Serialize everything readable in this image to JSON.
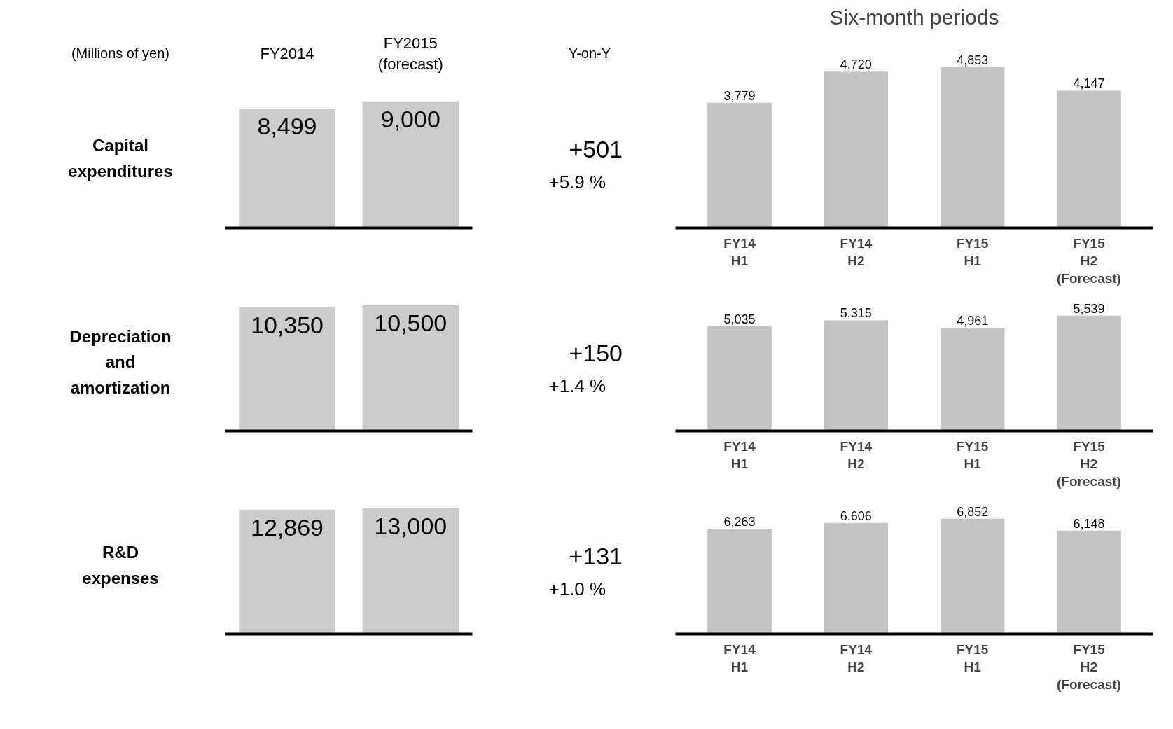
{
  "chart_data": [
    {
      "type": "bar",
      "title": "Capital expenditures",
      "categories": [
        "FY2014",
        "FY2015 (forecast)"
      ],
      "values": [
        8499,
        9000
      ],
      "value_labels": [
        "8,499",
        "9,000"
      ],
      "color": "#cccccc",
      "annotations": [
        "(Millions of yen)",
        "Y-on-Y",
        "+501",
        "+5.9 %"
      ]
    },
    {
      "type": "bar",
      "title": "Six-month periods",
      "categories": [
        "FY14 H1",
        "FY14 H2",
        "FY15 H1",
        "FY15 H2 (Forecast)"
      ],
      "values": [
        3779,
        4720,
        4853,
        4147
      ],
      "value_labels": [
        "3,779",
        "4,720",
        "4,853",
        "4,147"
      ],
      "color": "#c4c4c4"
    },
    {
      "type": "bar",
      "title": "Depreciation and amortization",
      "categories": [
        null,
        null
      ],
      "values": [
        10350,
        10500
      ],
      "value_labels": [
        "10,350",
        "10,500"
      ],
      "color": "#cccccc",
      "annotations": [
        "+150",
        "+1.4 %"
      ]
    },
    {
      "type": "bar",
      "categories": [
        "FY14 H1",
        "FY14 H2",
        "FY15 H1",
        "FY15 H2 (Forecast)"
      ],
      "values": [
        5035,
        5315,
        4961,
        5539
      ],
      "value_labels": [
        "5,035",
        "5,315",
        "4,961",
        "5,539"
      ],
      "color": "#c4c4c4"
    },
    {
      "type": "bar",
      "title": "R&D expenses",
      "categories": [
        null,
        null
      ],
      "values": [
        12869,
        13000
      ],
      "value_labels": [
        "12,869",
        "13,000"
      ],
      "color": "#cccccc",
      "annotations": [
        "+131",
        "+1.0 %"
      ]
    },
    {
      "type": "bar",
      "categories": [
        "FY14 H1",
        "FY14 H2",
        "FY15 H1",
        "FY15 H2 (Forecast)"
      ],
      "values": [
        6263,
        6606,
        6852,
        6148
      ],
      "value_labels": [
        "6,263",
        "6,606",
        "6,852",
        "6,148"
      ],
      "color": "#c4c4c4"
    }
  ]
}
